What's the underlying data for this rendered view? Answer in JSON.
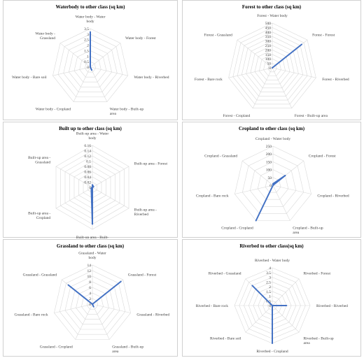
{
  "chart_data": [
    {
      "type": "radar",
      "title": "Waterbody to other class (sq km)",
      "ticks": [
        "0",
        "0.5",
        "1",
        "1.5",
        "2",
        "2.5",
        "3",
        "3.5"
      ],
      "max": 3.5,
      "categories": [
        [
          "Water body - Water",
          "body"
        ],
        [
          "Water body - Forest"
        ],
        [
          "Water body - Riverbed"
        ],
        [
          "Water body - Built-up",
          "area"
        ],
        [
          "Water body - Cropland"
        ],
        [
          "Water body - Bare soil"
        ],
        [
          "Water body -",
          "Grassland"
        ]
      ],
      "values": [
        3.2,
        0,
        0,
        0.3,
        0,
        0,
        0
      ],
      "color": "#4472c4"
    },
    {
      "type": "radar",
      "title": "Forest to other class (sq km)",
      "ticks": [
        "0",
        "50",
        "100",
        "150",
        "200",
        "250",
        "300",
        "350",
        "400",
        "450",
        "500"
      ],
      "max": 500,
      "categories": [
        [
          "Forest - Water body"
        ],
        [
          "Forest - Forest"
        ],
        [
          "Forest - Riverbed"
        ],
        [
          "Forest - Built-up area"
        ],
        [
          "Forest - Cropland"
        ],
        [
          "Forest - Bare rock"
        ],
        [
          "Forest - Grassland"
        ]
      ],
      "values": [
        0,
        420,
        0,
        0,
        0,
        0,
        0
      ],
      "color": "#4472c4"
    },
    {
      "type": "radar",
      "title": "Built up to other class (sq km)",
      "ticks": [
        "0",
        "0.02",
        "0.04",
        "0.06",
        "0.08",
        "0.1",
        "0.12",
        "0.14",
        "0.16"
      ],
      "max": 0.16,
      "categories": [
        [
          "Built-up area - Water",
          "body"
        ],
        [
          "Built-up area - Forest"
        ],
        [
          "Built-up area -",
          "Riverbed"
        ],
        [
          "Built-up area - Built-",
          "up area"
        ],
        [
          "Built-up area -",
          "Cropland"
        ],
        [
          "Built-up area -",
          "Grassland"
        ]
      ],
      "values": [
        0.01,
        0.005,
        0,
        0.14,
        0.005,
        0
      ],
      "color": "#4472c4"
    },
    {
      "type": "radar",
      "title": "Cropland to other class (sq km)",
      "ticks": [
        "0",
        "50",
        "100",
        "150",
        "200",
        "250"
      ],
      "max": 250,
      "categories": [
        [
          "Cropland - Water body"
        ],
        [
          "Cropland - Forest"
        ],
        [
          "Cropland - Riverbed"
        ],
        [
          "Cropland - Built-up",
          "area"
        ],
        [
          "Cropland - Cropland"
        ],
        [
          "Cropland - Bare rock"
        ],
        [
          "Cropland - Grassland"
        ]
      ],
      "values": [
        10,
        100,
        0,
        0,
        250,
        0,
        0
      ],
      "color": "#4472c4"
    },
    {
      "type": "radar",
      "title": "Grassland to other class (sq km)",
      "ticks": [
        "0",
        "2",
        "4",
        "6",
        "8",
        "10",
        "12",
        "14"
      ],
      "max": 14,
      "categories": [
        [
          "Grassland - Water",
          "body"
        ],
        [
          "Grassland - Forest"
        ],
        [
          "Grassland - Riverbed"
        ],
        [
          "Grassland - Built-up",
          "area"
        ],
        [
          "Grassland - Cropland"
        ],
        [
          "Grassland - Bare rock"
        ],
        [
          "Grassland - Grassland"
        ]
      ],
      "values": [
        0,
        13,
        0,
        1,
        0,
        0,
        11
      ],
      "color": "#4472c4"
    },
    {
      "type": "radar",
      "title": "Riverbed to other class(sq km)",
      "ticks": [
        "0",
        "0.5",
        "1",
        "1.5",
        "2",
        "2.5",
        "3",
        "3.5",
        "4"
      ],
      "max": 4,
      "categories": [
        [
          "Riverbed - Water body"
        ],
        [
          "Riverbed - Forest"
        ],
        [
          "Riverbed - Riverbed"
        ],
        [
          "Riverbed - Built-up",
          "area"
        ],
        [
          "Riverbed - Cropland"
        ],
        [
          "Riverbed - Bare soil"
        ],
        [
          "Riverbed - Bare rock"
        ],
        [
          "Riverbed - Grassland"
        ]
      ],
      "values": [
        0,
        0,
        1.5,
        0,
        4,
        0,
        0,
        3
      ],
      "color": "#4472c4"
    }
  ]
}
